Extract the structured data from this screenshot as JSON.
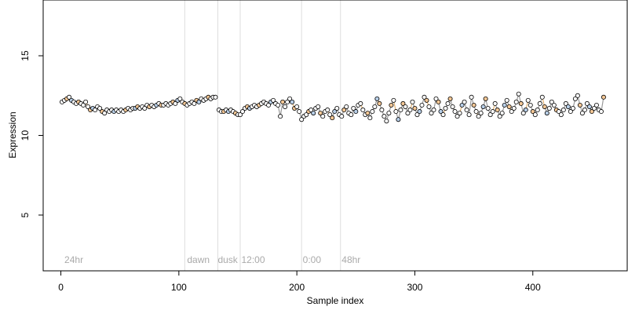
{
  "chart_data": {
    "type": "scatter",
    "title": "",
    "xlabel": "Sample index",
    "ylabel": "Expression",
    "xlim": [
      -15,
      480
    ],
    "ylim": [
      1.5,
      18.5
    ],
    "x_ticks": [
      0,
      100,
      200,
      300,
      400
    ],
    "x_tick_labels": [
      "0",
      "100",
      "200",
      "300",
      "400"
    ],
    "y_ticks": [
      5,
      10,
      15
    ],
    "y_tick_labels": [
      "5",
      "10",
      "15"
    ],
    "grid": false,
    "legend": "none",
    "colors": {
      "line_light": "#999999",
      "line_dark": "#e0b070",
      "fill_light": "#ffffff",
      "fill_dark": "#f5c896",
      "fill_blue": "#b8cfe8",
      "vline": "#dddddd",
      "region_label": "#aaaaaa"
    },
    "vertical_markers": [
      {
        "x": 105,
        "label": ""
      },
      {
        "x": 133,
        "label": ""
      },
      {
        "x": 152,
        "label": ""
      },
      {
        "x": 204,
        "label": ""
      },
      {
        "x": 237,
        "label": ""
      }
    ],
    "region_labels": [
      {
        "x": 3,
        "label": "24hr"
      },
      {
        "x": 107,
        "label": "dawn"
      },
      {
        "x": 133,
        "label": "dusk"
      },
      {
        "x": 153,
        "label": "12:00"
      },
      {
        "x": 205,
        "label": "0:00"
      },
      {
        "x": 238,
        "label": "48hr"
      }
    ],
    "series": [
      {
        "segment": "0-132",
        "x": [
          1,
          3,
          5,
          7,
          9,
          11,
          13,
          15,
          17,
          19,
          21,
          23,
          25,
          27,
          29,
          31,
          33,
          35,
          37,
          39,
          41,
          43,
          45,
          47,
          49,
          51,
          53,
          55,
          57,
          59,
          61,
          63,
          65,
          67,
          69,
          71,
          73,
          75,
          77,
          79,
          81,
          83,
          85,
          87,
          89,
          91,
          93,
          95,
          97,
          99,
          101,
          103,
          105,
          107,
          109,
          111,
          113,
          115,
          117,
          119,
          121,
          123,
          125,
          127,
          129,
          131
        ],
        "y": [
          12.1,
          12.2,
          12.3,
          12.4,
          12.2,
          12.1,
          12.0,
          12.1,
          12.0,
          11.9,
          12.1,
          11.8,
          11.6,
          11.7,
          11.6,
          11.8,
          11.7,
          11.5,
          11.4,
          11.6,
          11.5,
          11.6,
          11.5,
          11.6,
          11.5,
          11.6,
          11.5,
          11.6,
          11.7,
          11.6,
          11.7,
          11.7,
          11.8,
          11.7,
          11.8,
          11.7,
          11.9,
          11.8,
          11.9,
          11.8,
          11.9,
          12.0,
          11.9,
          11.9,
          12.0,
          11.9,
          12.0,
          12.1,
          12.0,
          12.2,
          12.3,
          12.1,
          12.0,
          11.9,
          12.0,
          12.1,
          12.0,
          12.2,
          12.1,
          12.3,
          12.2,
          12.3,
          12.4,
          12.3,
          12.4,
          12.4
        ]
      },
      {
        "segment": "133-205",
        "x": [
          134,
          136,
          138,
          140,
          142,
          144,
          146,
          148,
          150,
          152,
          154,
          156,
          158,
          160,
          162,
          164,
          166,
          168,
          170,
          172,
          174,
          176,
          178,
          180,
          182,
          184,
          186,
          188,
          190,
          192,
          194,
          196,
          198,
          200,
          202,
          204
        ],
        "y": [
          11.6,
          11.5,
          11.5,
          11.6,
          11.5,
          11.6,
          11.5,
          11.4,
          11.3,
          11.3,
          11.5,
          11.7,
          11.8,
          11.7,
          11.8,
          11.9,
          11.8,
          11.9,
          12.0,
          12.1,
          12.0,
          11.9,
          12.1,
          12.2,
          12.0,
          11.9,
          11.2,
          12.1,
          11.8,
          12.1,
          12.3,
          12.1,
          11.7,
          11.8,
          11.5,
          11.0
        ]
      },
      {
        "segment": "205-461",
        "x": [
          206,
          208,
          210,
          212,
          214,
          216,
          218,
          220,
          222,
          224,
          226,
          228,
          230,
          232,
          234,
          236,
          238,
          240,
          242,
          244,
          246,
          248,
          250,
          252,
          254,
          256,
          258,
          260,
          262,
          264,
          266,
          268,
          270,
          272,
          274,
          276,
          278,
          280,
          282,
          284,
          286,
          288,
          290,
          292,
          294,
          296,
          298,
          300,
          302,
          304,
          306,
          308,
          310,
          312,
          314,
          316,
          318,
          320,
          322,
          324,
          326,
          328,
          330,
          332,
          334,
          336,
          338,
          340,
          342,
          344,
          346,
          348,
          350,
          352,
          354,
          356,
          358,
          360,
          362,
          364,
          366,
          368,
          370,
          372,
          374,
          376,
          378,
          380,
          382,
          384,
          386,
          388,
          390,
          392,
          394,
          396,
          398,
          400,
          402,
          404,
          406,
          408,
          410,
          412,
          414,
          416,
          418,
          420,
          422,
          424,
          426,
          428,
          430,
          432,
          434,
          436,
          438,
          440,
          442,
          444,
          446,
          448,
          450,
          452,
          454,
          456,
          458,
          460
        ],
        "y": [
          11.2,
          11.3,
          11.5,
          11.6,
          11.4,
          11.7,
          11.8,
          11.4,
          11.2,
          11.5,
          11.6,
          11.3,
          11.1,
          11.5,
          11.7,
          11.3,
          11.2,
          11.6,
          11.8,
          11.4,
          11.3,
          11.7,
          11.5,
          11.9,
          12.0,
          11.6,
          11.3,
          11.4,
          11.1,
          11.5,
          11.8,
          12.3,
          12.0,
          11.6,
          11.2,
          10.9,
          11.4,
          11.9,
          12.2,
          11.5,
          11.0,
          11.6,
          12.0,
          11.8,
          11.4,
          11.6,
          12.1,
          11.7,
          11.3,
          11.5,
          11.9,
          12.4,
          12.2,
          11.8,
          11.4,
          11.6,
          12.3,
          12.1,
          11.5,
          11.3,
          11.7,
          12.0,
          12.3,
          11.8,
          11.5,
          11.2,
          11.4,
          11.9,
          12.1,
          11.6,
          11.3,
          12.4,
          11.9,
          11.5,
          11.2,
          11.4,
          11.8,
          12.3,
          11.7,
          11.3,
          11.5,
          12.0,
          11.6,
          11.2,
          11.4,
          11.9,
          12.2,
          11.8,
          11.5,
          11.7,
          12.1,
          12.6,
          12.0,
          11.4,
          11.6,
          12.2,
          11.9,
          11.5,
          11.3,
          11.6,
          12.0,
          12.4,
          11.8,
          11.4,
          11.7,
          12.1,
          11.9,
          11.6,
          11.5,
          11.3,
          11.6,
          12.0,
          11.8,
          11.5,
          11.7,
          12.3,
          12.5,
          11.9,
          11.4,
          11.6,
          12.0,
          11.8,
          11.5,
          11.7,
          11.9,
          11.6,
          11.5,
          12.4
        ]
      }
    ]
  }
}
